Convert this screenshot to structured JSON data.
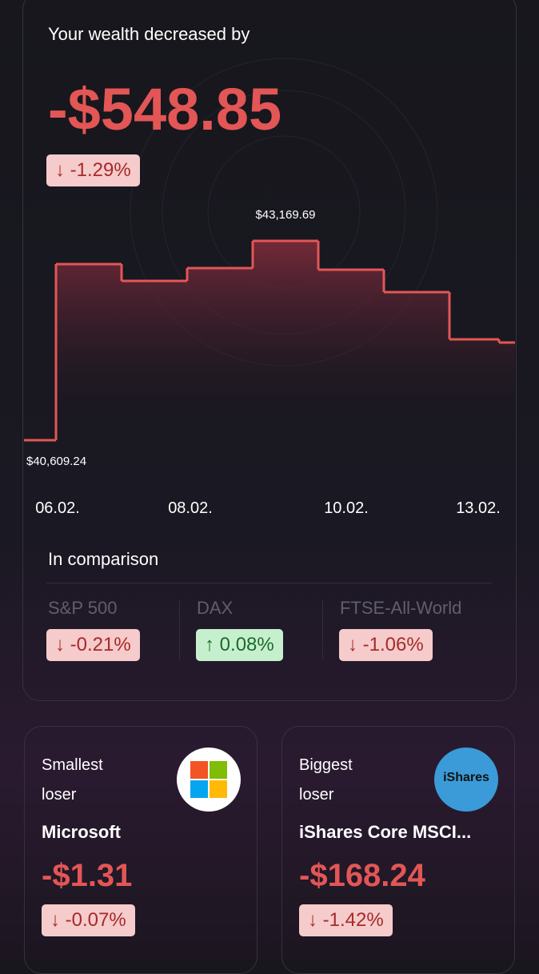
{
  "header": {
    "title": "Your wealth decreased by",
    "amount": "-$548.85",
    "change": "-1.29%"
  },
  "chart_data": {
    "type": "step",
    "categories": [
      null,
      "06.02.",
      null,
      "08.02.",
      null,
      "10.02.",
      null,
      "13.02.",
      null
    ],
    "values": [
      40609.24,
      42871.5,
      42655.5,
      42820,
      43169.69,
      42799.5,
      42511.6,
      41904.9,
      41863.8
    ],
    "value_labels": [
      "$40,609.24",
      null,
      null,
      null,
      "$43,169.69",
      null,
      null,
      null,
      null
    ],
    "color": "#e35656",
    "ylim": [
      40095,
      43694
    ]
  },
  "comparison": {
    "title": "In comparison",
    "items": [
      {
        "name": "S&P 500",
        "change": "-0.21%"
      },
      {
        "name": "DAX",
        "change": "0.08%"
      },
      {
        "name": "FTSE-All-World",
        "change": "-1.06%"
      }
    ]
  },
  "cards": [
    {
      "label1": "Smallest",
      "label2": "loser",
      "name": "Microsoft",
      "amount": "-$1.31",
      "change": "-0.07%"
    },
    {
      "label1": "Biggest",
      "label2": "loser",
      "name": "iShares Core MSCI...",
      "amount": "-$168.24",
      "change": "-1.42%",
      "logo": "iShares"
    }
  ]
}
